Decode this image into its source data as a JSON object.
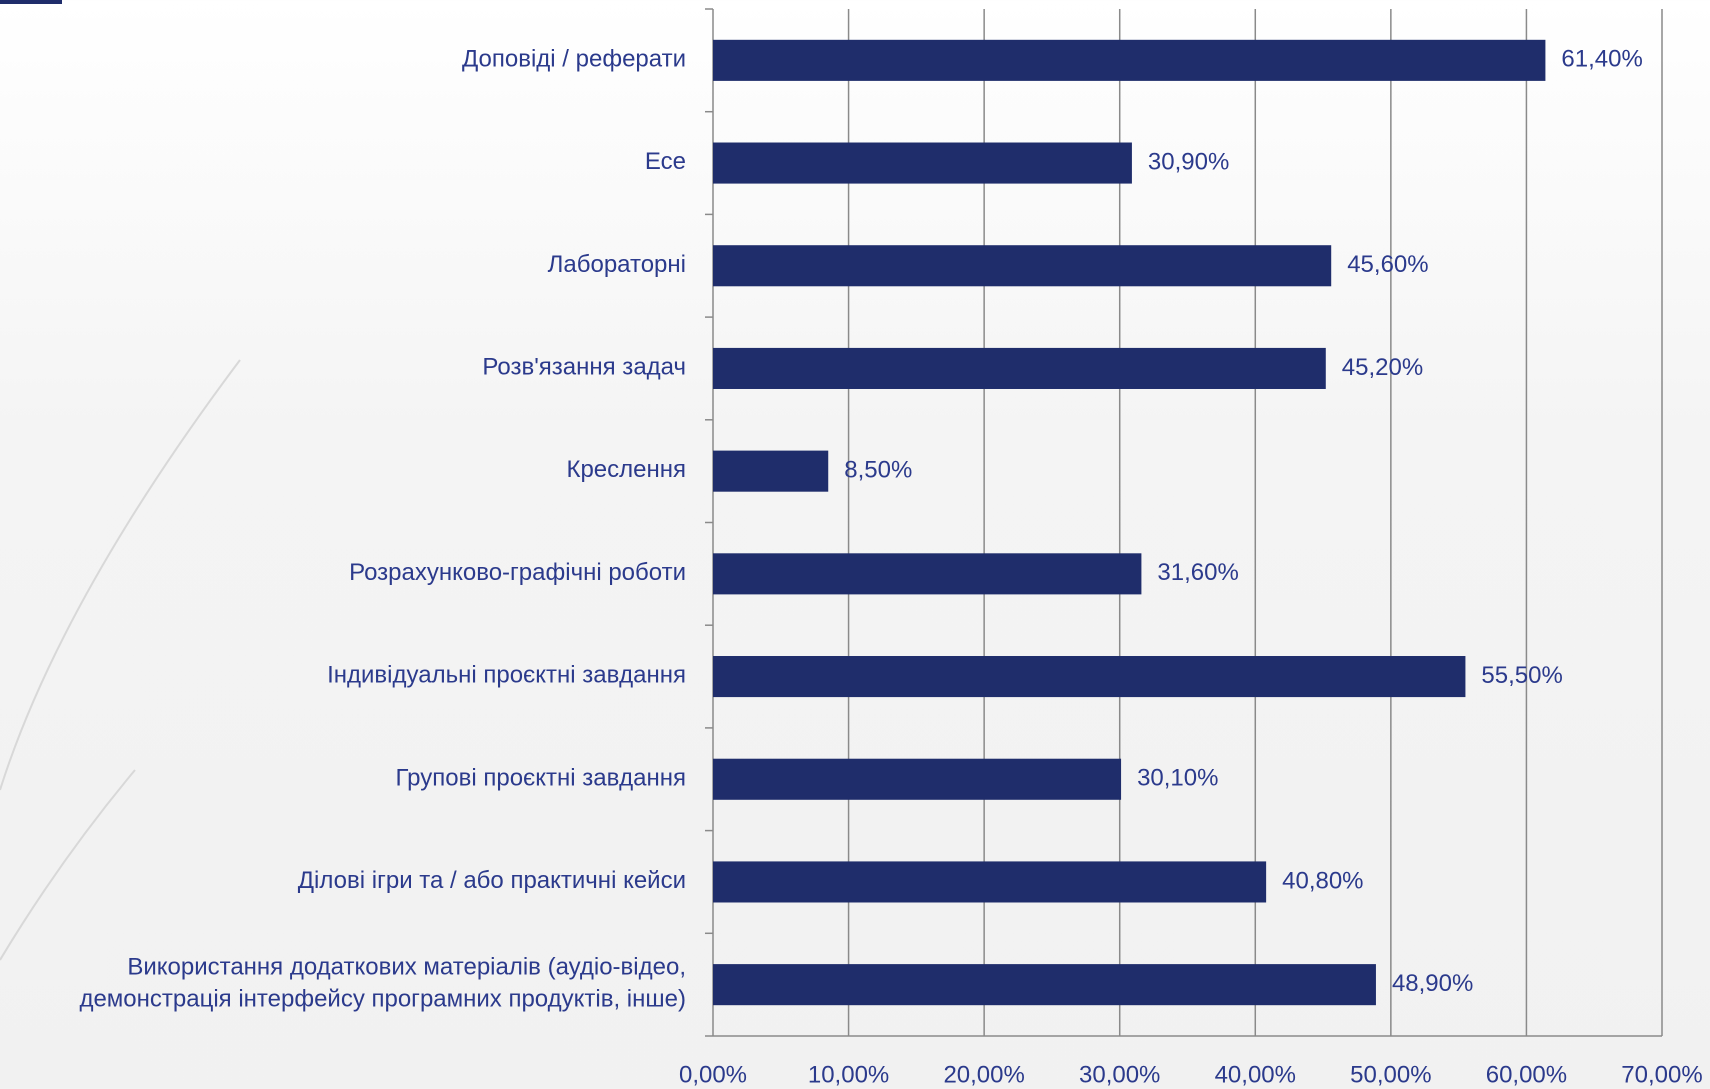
{
  "chart_data": {
    "type": "bar",
    "orientation": "horizontal",
    "categories": [
      "Доповіді / реферати",
      "Есе",
      "Лабораторні",
      "Розв'язання задач",
      "Креслення",
      "Розрахунково-графічні роботи",
      "Індивідуальні проєктні завдання",
      "Групові проєктні завдання",
      "Ділові ігри та / або практичні кейси",
      "Використання додаткових матеріалів (аудіо-відео,\nдемонстрація інтерфейсу програмних продуктів, інше)"
    ],
    "values": [
      61.4,
      30.9,
      45.6,
      45.2,
      8.5,
      31.6,
      55.5,
      30.1,
      40.8,
      48.9
    ],
    "value_labels": [
      "61,40%",
      "30,90%",
      "45,60%",
      "45,20%",
      "8,50%",
      "31,60%",
      "55,50%",
      "30,10%",
      "40,80%",
      "48,90%"
    ],
    "color": "#1f2d6b",
    "xlim": [
      0,
      70
    ],
    "xticks": [
      {
        "value": 0,
        "label": "0,00%"
      },
      {
        "value": 10,
        "label": "10,00%"
      },
      {
        "value": 20,
        "label": "20,00%"
      },
      {
        "value": 30,
        "label": "30,00%"
      },
      {
        "value": 40,
        "label": "40,00%"
      },
      {
        "value": 50,
        "label": "50,00%"
      },
      {
        "value": 60,
        "label": "60,00%"
      },
      {
        "value": 70,
        "label": "70,00%"
      }
    ],
    "grid": true
  }
}
